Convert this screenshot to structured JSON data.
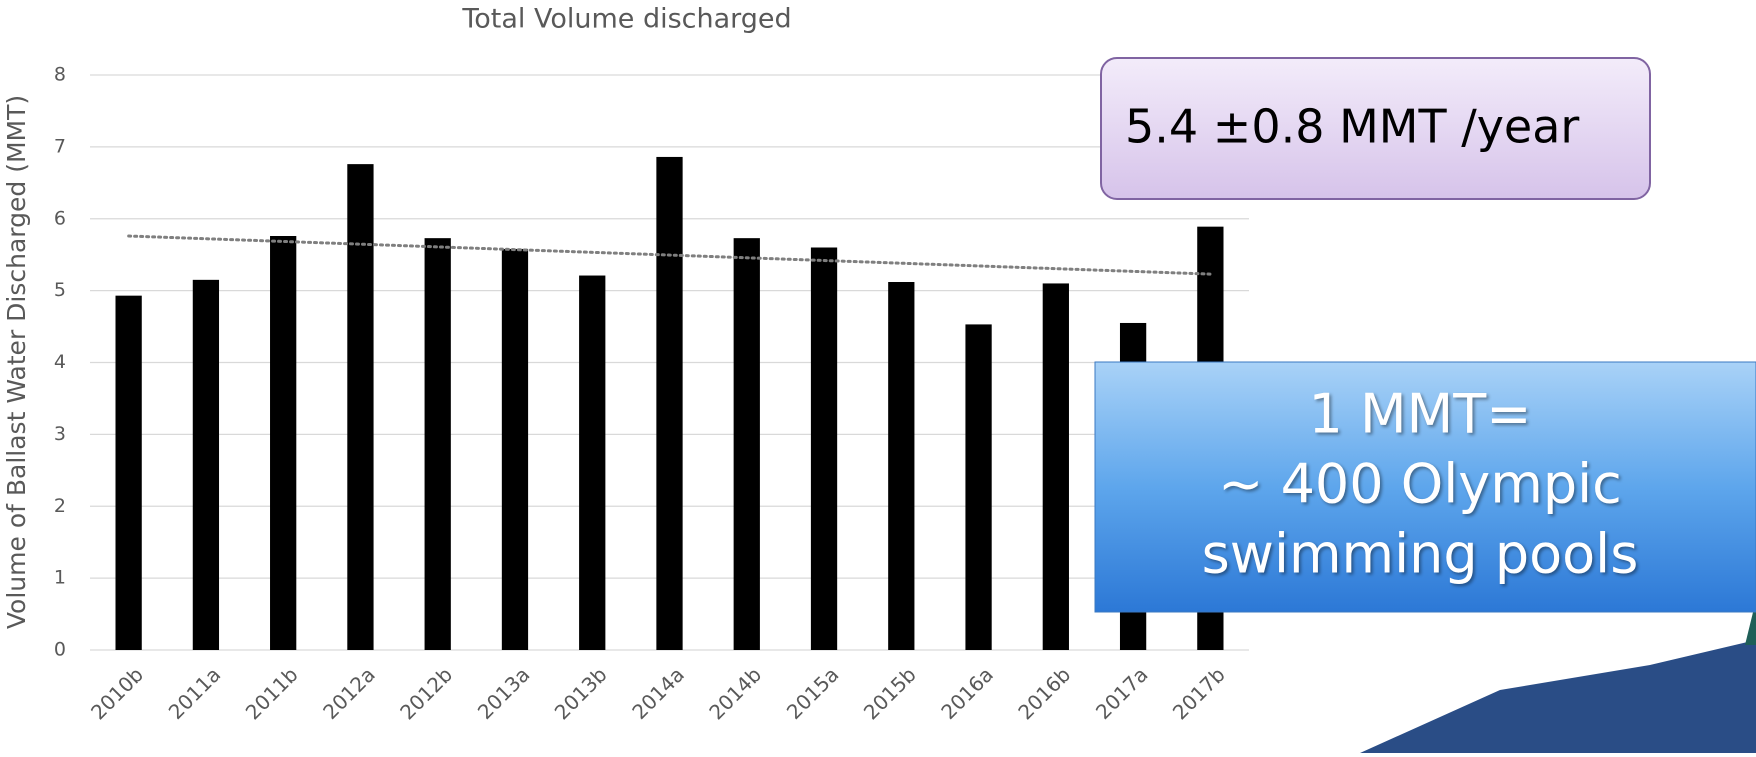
{
  "chart_data": {
    "type": "bar",
    "title": "Total Volume discharged",
    "y_label": "Volume of Ballast Water Discharged (MMT)",
    "categories": [
      "2010b",
      "2011a",
      "2011b",
      "2012a",
      "2012b",
      "2013a",
      "2013b",
      "2014a",
      "2014b",
      "2015a",
      "2015b",
      "2016a",
      "2016b",
      "2017a",
      "2017b"
    ],
    "values": [
      4.93,
      5.15,
      5.76,
      6.76,
      5.73,
      5.58,
      5.21,
      6.86,
      5.73,
      5.6,
      5.12,
      4.53,
      5.1,
      4.55,
      5.89
    ],
    "color": "#000000",
    "trendline": [
      5.76,
      5.23
    ],
    "ylim": [
      0,
      8
    ],
    "yticks": [
      0,
      1,
      2,
      3,
      4,
      5,
      6,
      7,
      8
    ],
    "grid": true,
    "annotations": [
      [
        "5.4 ±0.8 MMT /year"
      ],
      [
        "1 MMT=",
        "~ 400 Olympic",
        "swimming pools"
      ]
    ]
  }
}
